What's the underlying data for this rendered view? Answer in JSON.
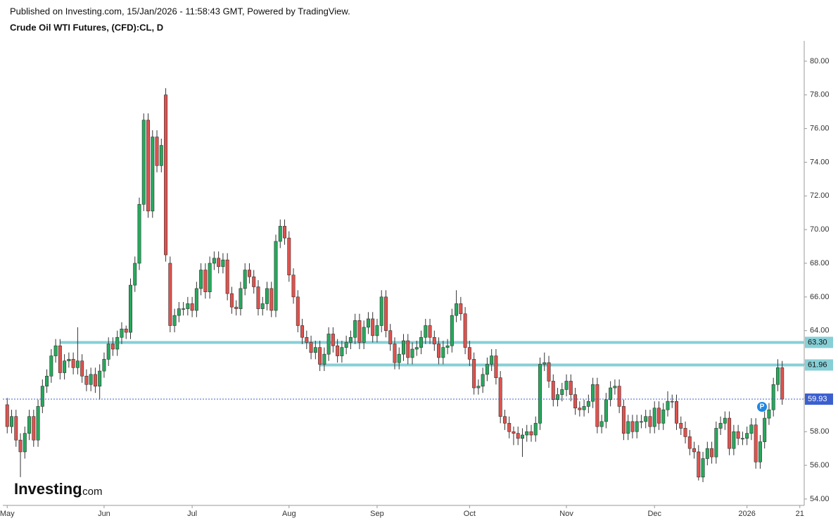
{
  "header": {
    "published": "Published on Investing.com, 15/Jan/2026 - 11:58:43 GMT, Powered by TradingView.",
    "symbol": "Crude Oil WTI Futures, (CFD):CL, D"
  },
  "logo": {
    "name": "Investing",
    "suffix": ".com"
  },
  "chart_data": {
    "type": "candlestick",
    "up_color": "#26a95c",
    "down_color": "#e0524d",
    "xlim": [
      -1,
      181
    ],
    "xticks": [
      {
        "value": 0,
        "label": "May"
      },
      {
        "value": 22,
        "label": "Jun"
      },
      {
        "value": 42,
        "label": "Jul"
      },
      {
        "value": 64,
        "label": "Aug"
      },
      {
        "value": 84,
        "label": "Sep"
      },
      {
        "value": 105,
        "label": "Oct"
      },
      {
        "value": 127,
        "label": "Nov"
      },
      {
        "value": 147,
        "label": "Dec"
      },
      {
        "value": 168,
        "label": "2026"
      },
      {
        "value": 180,
        "label": "21"
      }
    ],
    "ylim": [
      53.62,
      81.21
    ],
    "yticks": [
      {
        "value": 54,
        "label": "54.00"
      },
      {
        "value": 56,
        "label": "56.00"
      },
      {
        "value": 58,
        "label": "58.00"
      },
      {
        "value": 60,
        "label": "60.00"
      },
      {
        "value": 62,
        "label": "62.00"
      },
      {
        "value": 64,
        "label": "64.00"
      },
      {
        "value": 66,
        "label": "66.00"
      },
      {
        "value": 68,
        "label": "68.00"
      },
      {
        "value": 70,
        "label": "70.00"
      },
      {
        "value": 72,
        "label": "72.00"
      },
      {
        "value": 74,
        "label": "74.00"
      },
      {
        "value": 76,
        "label": "76.00"
      },
      {
        "value": 78,
        "label": "78.00"
      },
      {
        "value": 80,
        "label": "80.00"
      }
    ],
    "levels": [
      {
        "value": 63.3,
        "label": "63.30",
        "color": "#86cfd6"
      },
      {
        "value": 61.96,
        "label": "61.96",
        "color": "#86cfd6"
      }
    ],
    "last_price": {
      "value": 59.93,
      "label": "59.93",
      "color": "#3c5fcf"
    },
    "annotation": "P",
    "open": [
      59.6,
      58.3,
      58.9,
      57.5,
      56.8,
      57.9,
      58.9,
      57.5,
      59.5,
      60.7,
      61.3,
      62.5,
      63.1,
      61.5,
      62.2,
      62.3,
      61.8,
      62.2,
      61.3,
      60.8,
      61.4,
      60.7,
      61.6,
      62.3,
      63.2,
      62.9,
      63.6,
      64.1,
      63.9,
      66.7,
      68.0,
      71.5,
      76.5,
      71.1,
      75.5,
      73.8,
      78.0,
      68.0,
      64.3,
      64.9,
      65.3,
      65.3,
      65.6,
      65.2,
      66.5,
      67.6,
      66.3,
      68.0,
      68.3,
      67.8,
      68.2,
      66.2,
      65.4,
      65.3,
      66.5,
      67.6,
      67.2,
      66.6,
      65.3,
      65.6,
      66.5,
      65.2,
      69.3,
      70.2,
      69.5,
      67.3,
      66.0,
      64.3,
      63.6,
      63.3,
      62.7,
      63.0,
      62.0,
      62.6,
      63.8,
      63.1,
      62.5,
      63.0,
      63.3,
      63.6,
      64.6,
      63.3,
      64.2,
      64.7,
      63.7,
      64.3,
      66.0,
      64.0,
      63.2,
      62.1,
      62.6,
      63.4,
      62.4,
      62.9,
      63.0,
      63.6,
      64.3,
      63.6,
      63.2,
      62.4,
      63.0,
      63.1,
      64.9,
      65.6,
      65.0,
      63.0,
      62.3,
      60.6,
      60.7,
      61.4,
      62.0,
      62.5,
      61.2,
      58.9,
      58.5,
      58.0,
      57.9,
      57.6,
      57.8,
      58.0,
      57.8,
      58.5,
      62.0,
      62.1,
      61.0,
      59.9,
      60.2,
      60.5,
      61.0,
      60.2,
      59.4,
      59.3,
      59.5,
      59.8,
      60.8,
      58.3,
      58.6,
      59.9,
      60.6,
      60.7,
      59.5,
      57.9,
      58.6,
      58.0,
      58.6,
      58.6,
      58.9,
      58.3,
      59.4,
      58.5,
      59.3,
      59.8,
      59.8,
      58.5,
      58.2,
      57.7,
      57.0,
      56.8,
      55.3,
      56.4,
      57.0,
      56.5,
      58.2,
      58.5,
      58.8,
      57.0,
      58.0,
      57.6,
      57.6,
      57.9,
      58.4,
      56.2,
      57.4,
      58.8,
      59.3,
      60.8,
      61.8
    ],
    "high": [
      60.0,
      59.3,
      59.3,
      57.9,
      58.3,
      59.3,
      59.3,
      59.9,
      61.1,
      61.7,
      62.9,
      63.5,
      63.5,
      62.6,
      62.7,
      62.7,
      64.2,
      62.6,
      61.7,
      61.8,
      61.8,
      62.0,
      62.7,
      63.6,
      63.6,
      64.0,
      64.5,
      64.3,
      67.1,
      68.4,
      71.9,
      76.9,
      76.9,
      75.9,
      75.9,
      75.4,
      78.4,
      68.4,
      65.3,
      65.7,
      65.7,
      66.0,
      66.0,
      66.9,
      68.0,
      68.0,
      68.4,
      68.7,
      68.7,
      68.6,
      68.6,
      66.6,
      65.8,
      66.9,
      68.0,
      68.0,
      67.6,
      67.0,
      66.0,
      66.9,
      66.9,
      69.7,
      70.6,
      70.6,
      69.9,
      67.7,
      66.4,
      64.7,
      64.0,
      63.7,
      63.4,
      63.4,
      63.0,
      64.2,
      64.2,
      63.5,
      63.4,
      63.7,
      64.0,
      65.0,
      65.0,
      64.6,
      65.1,
      65.1,
      64.7,
      66.4,
      66.4,
      64.4,
      63.6,
      63.0,
      63.8,
      63.8,
      63.3,
      63.4,
      64.0,
      64.7,
      64.7,
      64.0,
      63.6,
      63.4,
      63.5,
      65.3,
      66.4,
      66.0,
      65.4,
      63.4,
      62.7,
      61.1,
      61.8,
      62.4,
      62.9,
      62.9,
      61.6,
      59.3,
      58.9,
      58.3,
      58.3,
      58.2,
      58.4,
      58.4,
      58.9,
      62.4,
      62.7,
      62.5,
      61.4,
      60.6,
      60.9,
      61.4,
      61.4,
      60.6,
      59.8,
      59.9,
      60.2,
      61.2,
      61.2,
      59.0,
      60.3,
      61.0,
      61.1,
      61.1,
      59.9,
      59.0,
      59.0,
      59.0,
      59.0,
      59.3,
      59.3,
      59.8,
      59.8,
      59.7,
      60.4,
      60.2,
      60.2,
      58.9,
      58.6,
      58.1,
      57.4,
      57.2,
      56.8,
      57.4,
      57.4,
      58.6,
      58.9,
      59.2,
      59.2,
      58.4,
      58.4,
      58.0,
      58.3,
      58.8,
      58.8,
      57.8,
      59.2,
      59.7,
      61.2,
      62.3,
      62.2
    ],
    "low": [
      57.9,
      57.9,
      57.1,
      55.3,
      56.4,
      57.5,
      57.1,
      57.1,
      59.1,
      60.3,
      60.9,
      62.1,
      61.1,
      61.1,
      61.8,
      61.4,
      61.4,
      60.9,
      60.4,
      60.4,
      60.3,
      59.9,
      61.2,
      61.9,
      62.5,
      62.5,
      63.2,
      63.5,
      63.5,
      66.3,
      67.6,
      71.1,
      70.7,
      70.7,
      73.4,
      73.4,
      68.1,
      63.9,
      63.9,
      64.5,
      64.9,
      64.9,
      64.8,
      64.8,
      66.1,
      65.9,
      65.9,
      67.6,
      67.4,
      67.4,
      65.8,
      65.0,
      64.9,
      64.9,
      66.1,
      66.8,
      66.2,
      64.9,
      64.9,
      65.2,
      64.8,
      64.8,
      68.9,
      69.1,
      66.9,
      65.6,
      63.9,
      63.2,
      62.9,
      62.3,
      62.3,
      61.6,
      61.6,
      62.2,
      62.7,
      62.1,
      62.1,
      62.6,
      62.9,
      63.2,
      62.9,
      62.9,
      63.8,
      63.3,
      63.3,
      63.9,
      63.6,
      62.8,
      61.7,
      61.7,
      62.2,
      62.0,
      62.0,
      62.5,
      62.6,
      63.2,
      63.2,
      62.8,
      62.0,
      62.0,
      62.6,
      62.7,
      64.5,
      64.6,
      62.6,
      61.9,
      60.2,
      60.2,
      60.3,
      61.0,
      61.6,
      60.8,
      58.5,
      58.1,
      57.6,
      57.2,
      57.2,
      56.5,
      57.4,
      57.4,
      57.4,
      58.1,
      61.6,
      60.6,
      59.5,
      59.5,
      59.8,
      60.1,
      59.8,
      59.0,
      58.9,
      58.9,
      59.1,
      59.4,
      57.9,
      57.9,
      58.2,
      59.5,
      60.2,
      59.1,
      57.5,
      57.5,
      57.6,
      57.6,
      58.2,
      58.2,
      57.9,
      57.9,
      58.1,
      58.1,
      58.9,
      59.4,
      58.1,
      57.8,
      57.3,
      56.6,
      56.4,
      55.1,
      55.0,
      56.0,
      56.1,
      56.1,
      57.8,
      58.1,
      56.6,
      56.6,
      57.2,
      57.2,
      57.2,
      57.5,
      55.8,
      55.8,
      57.0,
      58.4,
      58.9,
      60.4,
      59.6
    ],
    "close": [
      58.3,
      58.9,
      57.5,
      56.8,
      57.9,
      58.9,
      57.5,
      59.5,
      60.7,
      61.3,
      62.5,
      63.1,
      61.5,
      62.2,
      62.3,
      61.8,
      62.2,
      61.3,
      60.8,
      61.4,
      60.7,
      61.6,
      62.3,
      63.2,
      62.9,
      63.6,
      64.1,
      63.9,
      66.7,
      68.0,
      71.5,
      76.5,
      71.1,
      75.5,
      73.8,
      75.0,
      68.5,
      64.3,
      64.9,
      65.3,
      65.3,
      65.6,
      65.2,
      66.5,
      67.6,
      66.3,
      68.0,
      68.3,
      67.8,
      68.2,
      66.2,
      65.4,
      65.3,
      66.5,
      67.6,
      67.2,
      66.6,
      65.3,
      65.6,
      66.5,
      65.2,
      69.3,
      70.2,
      69.5,
      67.3,
      66.0,
      64.3,
      63.6,
      63.3,
      62.7,
      63.0,
      62.0,
      62.6,
      63.8,
      63.1,
      62.5,
      63.0,
      63.3,
      63.6,
      64.6,
      63.3,
      64.2,
      64.7,
      63.7,
      64.3,
      66.0,
      64.0,
      63.2,
      62.1,
      62.6,
      63.4,
      62.4,
      62.9,
      63.0,
      63.6,
      64.3,
      63.6,
      63.2,
      62.4,
      63.0,
      63.1,
      64.9,
      65.6,
      65.0,
      63.0,
      62.3,
      60.6,
      60.7,
      61.4,
      62.0,
      62.5,
      61.2,
      58.9,
      58.5,
      58.0,
      57.9,
      57.6,
      57.8,
      58.0,
      57.8,
      58.5,
      62.0,
      62.1,
      61.0,
      59.9,
      60.2,
      60.5,
      61.0,
      60.2,
      59.4,
      59.3,
      59.5,
      59.8,
      60.8,
      58.3,
      58.6,
      59.9,
      60.6,
      60.7,
      59.5,
      57.9,
      58.6,
      58.0,
      58.6,
      58.6,
      58.9,
      58.3,
      59.4,
      58.5,
      59.3,
      59.8,
      59.8,
      58.5,
      58.2,
      57.7,
      57.0,
      56.8,
      55.3,
      56.4,
      57.0,
      56.5,
      58.2,
      58.5,
      58.8,
      57.0,
      58.0,
      57.6,
      57.6,
      57.9,
      58.4,
      56.2,
      57.4,
      58.8,
      59.3,
      60.8,
      61.8,
      59.93
    ]
  }
}
